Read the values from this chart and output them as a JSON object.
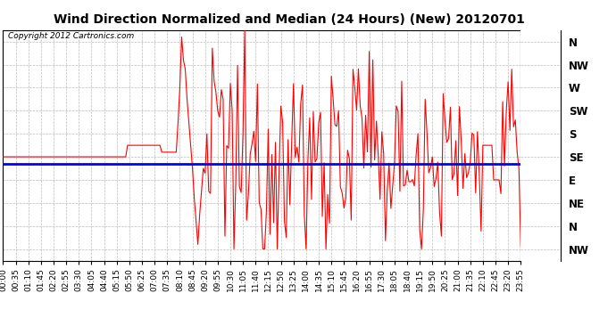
{
  "title": "Wind Direction Normalized and Median (24 Hours) (New) 20120701",
  "copyright_text": "Copyright 2012 Cartronics.com",
  "background_color": "#ffffff",
  "plot_bg_color": "#ffffff",
  "grid_color": "#bbbbbb",
  "ytick_labels": [
    "N",
    "NW",
    "W",
    "SW",
    "S",
    "SE",
    "E",
    "NE",
    "N",
    "NW"
  ],
  "ytick_values": [
    8,
    7,
    6,
    5,
    4,
    3,
    2,
    1,
    0,
    -1
  ],
  "ylim": [
    -1.5,
    8.5
  ],
  "median_value": 2.7,
  "line_color": "#ff0000",
  "median_color": "#0000ff",
  "median_linewidth": 2.0,
  "line_linewidth": 0.8,
  "title_fontsize": 10,
  "copyright_fontsize": 6.5,
  "tick_fontsize": 6.5,
  "ylabel_fontsize": 8.5,
  "tick_step_minutes": 35
}
